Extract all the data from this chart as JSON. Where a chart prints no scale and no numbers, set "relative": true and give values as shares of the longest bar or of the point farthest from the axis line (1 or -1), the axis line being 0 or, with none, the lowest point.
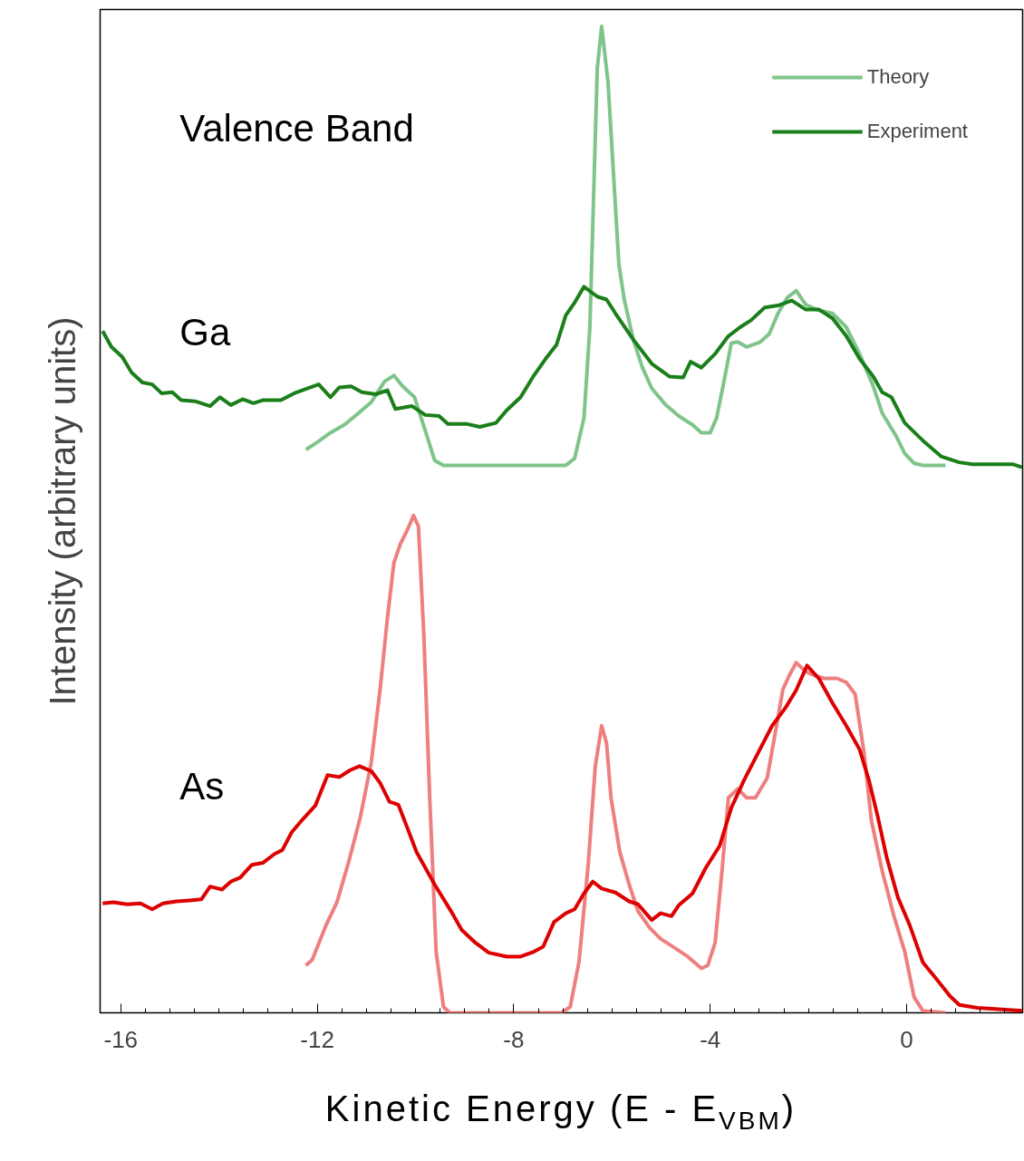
{
  "chart_data": {
    "type": "line",
    "relative": true,
    "xlabel": "Kinetic Energy (E - E$_{VBM}$)",
    "ylabel": "Intensity (arbitrary units)",
    "annotations": [
      "Valence Band",
      "Ga",
      "As"
    ],
    "xlim": [
      -16.42,
      2.36
    ],
    "xticks": [
      -16,
      -12,
      -8,
      -4,
      0
    ],
    "legend": "top right",
    "grid": false,
    "line_style": "solid",
    "marker": "none",
    "series": [
      {
        "name": "Theory",
        "color": "#7fc48a",
        "x": [
          -12.23,
          -12.01,
          -11.73,
          -11.45,
          -11.18,
          -10.9,
          -10.63,
          -10.44,
          -10.26,
          -10.02,
          -9.8,
          -9.61,
          -9.43,
          -8.69,
          -7.4,
          -6.94,
          -6.76,
          -6.57,
          -6.45,
          -6.3,
          -6.21,
          -6.08,
          -5.97,
          -5.86,
          -5.75,
          -5.56,
          -5.38,
          -5.19,
          -4.92,
          -4.64,
          -4.36,
          -4.18,
          -4.0,
          -3.87,
          -3.72,
          -3.57,
          -3.44,
          -3.26,
          -2.98,
          -2.8,
          -2.62,
          -2.43,
          -2.25,
          -2.06,
          -1.79,
          -1.51,
          -1.23,
          -0.96,
          -0.68,
          -0.5,
          -0.22,
          -0.04,
          0.15,
          0.33,
          0.79
        ],
        "values": [
          0.571,
          0.578,
          0.588,
          0.596,
          0.607,
          0.619,
          0.64,
          0.646,
          0.635,
          0.624,
          0.59,
          0.56,
          0.555,
          0.555,
          0.555,
          0.555,
          0.562,
          0.603,
          0.695,
          0.957,
          1.0,
          0.943,
          0.851,
          0.759,
          0.723,
          0.681,
          0.654,
          0.633,
          0.617,
          0.605,
          0.596,
          0.588,
          0.588,
          0.603,
          0.64,
          0.679,
          0.68,
          0.675,
          0.68,
          0.688,
          0.709,
          0.725,
          0.732,
          0.718,
          0.712,
          0.709,
          0.695,
          0.668,
          0.635,
          0.608,
          0.585,
          0.567,
          0.557,
          0.555,
          0.555
        ]
      },
      {
        "name": "Experiment",
        "color": "#1a7f1a",
        "x": [
          -16.37,
          -16.19,
          -15.97,
          -15.78,
          -15.56,
          -15.36,
          -15.17,
          -14.95,
          -14.77,
          -14.49,
          -14.18,
          -13.98,
          -13.76,
          -13.52,
          -13.3,
          -13.11,
          -12.74,
          -12.47,
          -12.19,
          -11.97,
          -11.73,
          -11.55,
          -11.31,
          -11.09,
          -10.81,
          -10.57,
          -10.41,
          -10.07,
          -9.8,
          -9.52,
          -9.34,
          -8.97,
          -8.69,
          -8.36,
          -8.14,
          -7.86,
          -7.59,
          -7.35,
          -7.13,
          -6.94,
          -6.76,
          -6.57,
          -6.3,
          -6.11,
          -5.93,
          -5.56,
          -5.19,
          -4.83,
          -4.55,
          -4.4,
          -4.18,
          -3.9,
          -3.63,
          -3.39,
          -3.17,
          -2.89,
          -2.62,
          -2.34,
          -2.06,
          -1.79,
          -1.51,
          -1.23,
          -0.96,
          -0.68,
          -0.5,
          -0.31,
          -0.04,
          0.33,
          0.7,
          1.07,
          1.34,
          1.8,
          2.17,
          2.35
        ],
        "values": [
          0.691,
          0.675,
          0.665,
          0.649,
          0.639,
          0.637,
          0.628,
          0.629,
          0.621,
          0.62,
          0.615,
          0.624,
          0.616,
          0.622,
          0.618,
          0.621,
          0.621,
          0.628,
          0.633,
          0.637,
          0.624,
          0.634,
          0.635,
          0.629,
          0.627,
          0.631,
          0.612,
          0.615,
          0.606,
          0.605,
          0.597,
          0.597,
          0.594,
          0.598,
          0.611,
          0.624,
          0.646,
          0.663,
          0.677,
          0.707,
          0.72,
          0.736,
          0.726,
          0.723,
          0.709,
          0.682,
          0.658,
          0.645,
          0.644,
          0.66,
          0.654,
          0.668,
          0.686,
          0.695,
          0.702,
          0.715,
          0.717,
          0.722,
          0.713,
          0.713,
          0.704,
          0.686,
          0.663,
          0.645,
          0.629,
          0.624,
          0.598,
          0.58,
          0.564,
          0.558,
          0.556,
          0.556,
          0.556,
          0.553
        ]
      },
      {
        "color": "#ee7f7f",
        "x": [
          -12.23,
          -12.1,
          -11.82,
          -11.6,
          -11.36,
          -11.12,
          -10.9,
          -10.72,
          -10.57,
          -10.44,
          -10.31,
          -10.17,
          -10.04,
          -9.94,
          -9.83,
          -9.71,
          -9.58,
          -9.43,
          -9.3,
          -8.32,
          -7.03,
          -6.85,
          -6.67,
          -6.48,
          -6.34,
          -6.21,
          -6.11,
          -6.02,
          -5.84,
          -5.65,
          -5.47,
          -5.23,
          -5.01,
          -4.73,
          -4.46,
          -4.18,
          -4.05,
          -3.9,
          -3.76,
          -3.63,
          -3.44,
          -3.26,
          -3.08,
          -2.84,
          -2.65,
          -2.52,
          -2.39,
          -2.25,
          -2.06,
          -1.88,
          -1.69,
          -1.42,
          -1.23,
          -1.05,
          -0.87,
          -0.72,
          -0.5,
          -0.26,
          -0.04,
          0.15,
          0.33,
          0.79
        ],
        "values": [
          0.048,
          0.054,
          0.089,
          0.112,
          0.153,
          0.199,
          0.254,
          0.328,
          0.401,
          0.456,
          0.475,
          0.489,
          0.504,
          0.493,
          0.383,
          0.218,
          0.062,
          0.006,
          0,
          0,
          0,
          0.006,
          0.052,
          0.153,
          0.25,
          0.291,
          0.273,
          0.218,
          0.163,
          0.13,
          0.103,
          0.086,
          0.075,
          0.066,
          0.057,
          0.045,
          0.048,
          0.071,
          0.144,
          0.218,
          0.227,
          0.218,
          0.218,
          0.238,
          0.291,
          0.328,
          0.342,
          0.355,
          0.346,
          0.342,
          0.339,
          0.339,
          0.335,
          0.323,
          0.264,
          0.195,
          0.144,
          0.098,
          0.062,
          0.016,
          0.002,
          0
        ]
      },
      {
        "color": "#dd0000",
        "x": [
          -16.37,
          -16.15,
          -15.87,
          -15.6,
          -15.36,
          -15.14,
          -14.86,
          -14.59,
          -14.36,
          -14.18,
          -13.94,
          -13.76,
          -13.57,
          -13.33,
          -13.11,
          -12.87,
          -12.71,
          -12.52,
          -12.28,
          -12.04,
          -11.79,
          -11.55,
          -11.33,
          -11.14,
          -10.9,
          -10.72,
          -10.53,
          -10.35,
          -10.17,
          -9.98,
          -9.61,
          -9.24,
          -9.06,
          -8.78,
          -8.51,
          -8.14,
          -7.86,
          -7.59,
          -7.4,
          -7.18,
          -6.94,
          -6.76,
          -6.57,
          -6.39,
          -6.21,
          -5.93,
          -5.65,
          -5.47,
          -5.19,
          -5.01,
          -4.79,
          -4.64,
          -4.36,
          -4.09,
          -3.81,
          -3.57,
          -3.31,
          -3.02,
          -2.74,
          -2.47,
          -2.25,
          -2.03,
          -1.79,
          -1.51,
          -1.23,
          -0.96,
          -0.77,
          -0.59,
          -0.41,
          -0.18,
          0.06,
          0.33,
          0.61,
          0.88,
          1.07,
          1.44,
          1.8,
          2.35
        ],
        "values": [
          0.111,
          0.112,
          0.11,
          0.111,
          0.105,
          0.111,
          0.113,
          0.114,
          0.115,
          0.128,
          0.125,
          0.133,
          0.137,
          0.15,
          0.152,
          0.161,
          0.165,
          0.183,
          0.197,
          0.21,
          0.241,
          0.239,
          0.246,
          0.25,
          0.245,
          0.233,
          0.214,
          0.211,
          0.188,
          0.163,
          0.13,
          0.1,
          0.084,
          0.071,
          0.061,
          0.057,
          0.057,
          0.062,
          0.067,
          0.092,
          0.101,
          0.105,
          0.121,
          0.133,
          0.126,
          0.122,
          0.113,
          0.11,
          0.094,
          0.101,
          0.098,
          0.109,
          0.121,
          0.147,
          0.169,
          0.208,
          0.236,
          0.264,
          0.291,
          0.309,
          0.327,
          0.352,
          0.339,
          0.314,
          0.291,
          0.267,
          0.236,
          0.199,
          0.158,
          0.117,
          0.089,
          0.051,
          0.034,
          0.017,
          0.008,
          0.005,
          0.004,
          0.002
        ]
      }
    ]
  }
}
